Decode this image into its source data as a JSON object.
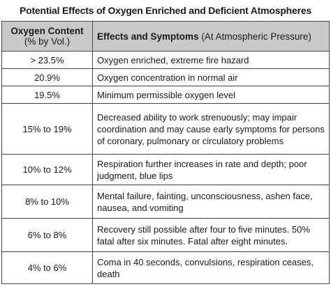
{
  "header": {
    "title": "Potential Effects of Oxygen Enriched and Deficient Atmospheres"
  },
  "table": {
    "columns": [
      {
        "title": "Oxygen Content",
        "subtitle": "(% by Vol.)"
      },
      {
        "title": "Effects and Symptoms",
        "subtitle": "(At Atmospheric Pressure)"
      }
    ],
    "rows": [
      [
        "> 23.5%",
        "Oxygen enriched, extreme fire hazard"
      ],
      [
        "20.9%",
        "Oxygen concentration in normal air"
      ],
      [
        "19.5%",
        "Minimum permissible oxygen level"
      ],
      [
        "15% to 19%",
        "Decreased ability to work strenuously; may impair coordination and may cause early symptoms for persons of coronary, pulmonary or circulatory problems"
      ],
      [
        "10% to 12%",
        "Respiration further increases in rate and depth; poor judgment, blue lips"
      ],
      [
        "8% to 10%",
        "Mental failure, fainting, unconsciousness, ashen face, nausea, and vomiting"
      ],
      [
        "6% to 8%",
        "Recovery still possible after four to five minutes. 50% fatal after six minutes. Fatal after eight minutes."
      ],
      [
        "4% to 6%",
        "Coma in 40 seconds, convulsions, respiration ceases, death"
      ]
    ]
  }
}
